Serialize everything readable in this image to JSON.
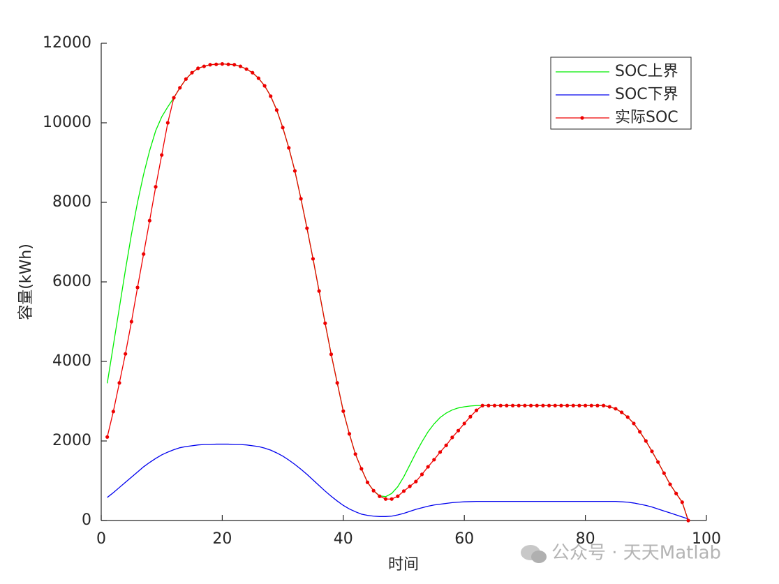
{
  "chart_data": {
    "type": "line",
    "xlabel": "时间",
    "ylabel": "容量(kWh)",
    "x": [
      1,
      2,
      3,
      4,
      5,
      6,
      7,
      8,
      9,
      10,
      11,
      12,
      13,
      14,
      15,
      16,
      17,
      18,
      19,
      20,
      21,
      22,
      23,
      24,
      25,
      26,
      27,
      28,
      29,
      30,
      31,
      32,
      33,
      34,
      35,
      36,
      37,
      38,
      39,
      40,
      41,
      42,
      43,
      44,
      45,
      46,
      47,
      48,
      49,
      50,
      51,
      52,
      53,
      54,
      55,
      56,
      57,
      58,
      59,
      60,
      61,
      62,
      63,
      64,
      65,
      66,
      67,
      68,
      69,
      70,
      71,
      72,
      73,
      74,
      75,
      76,
      77,
      78,
      79,
      80,
      81,
      82,
      83,
      84,
      85,
      86,
      87,
      88,
      89,
      90,
      91,
      92,
      93,
      94,
      95,
      96,
      97
    ],
    "series": [
      {
        "name": "SOC上界",
        "color": "#00ee00",
        "marker": false,
        "values": [
          3450,
          4400,
          5350,
          6300,
          7200,
          8000,
          8700,
          9300,
          9800,
          10150,
          10400,
          10630,
          10880,
          11100,
          11260,
          11370,
          11420,
          11460,
          11470,
          11480,
          11470,
          11460,
          11420,
          11350,
          11260,
          11120,
          10930,
          10670,
          10320,
          9880,
          9370,
          8790,
          8090,
          7350,
          6580,
          5770,
          4960,
          4180,
          3460,
          2750,
          2180,
          1670,
          1300,
          960,
          750,
          620,
          600,
          680,
          850,
          1100,
          1400,
          1700,
          1980,
          2230,
          2430,
          2590,
          2700,
          2780,
          2830,
          2860,
          2880,
          2890,
          2890,
          2890,
          2890,
          2890,
          2890,
          2890,
          2890,
          2890,
          2890,
          2890,
          2890,
          2890,
          2890,
          2890,
          2890,
          2890,
          2890,
          2890,
          2890,
          2890,
          2890,
          2860,
          2810,
          2720,
          2600,
          2440,
          2230,
          2000,
          1740,
          1470,
          1190,
          910,
          680,
          460,
          0
        ]
      },
      {
        "name": "SOC下界",
        "color": "#0000ee",
        "marker": false,
        "values": [
          580,
          700,
          830,
          960,
          1090,
          1220,
          1350,
          1460,
          1560,
          1650,
          1720,
          1780,
          1830,
          1860,
          1880,
          1900,
          1910,
          1910,
          1920,
          1920,
          1920,
          1910,
          1910,
          1900,
          1880,
          1860,
          1820,
          1770,
          1700,
          1620,
          1520,
          1410,
          1290,
          1160,
          1020,
          880,
          740,
          610,
          490,
          380,
          290,
          220,
          160,
          130,
          110,
          100,
          100,
          110,
          140,
          180,
          230,
          280,
          320,
          360,
          390,
          410,
          430,
          450,
          460,
          470,
          475,
          480,
          480,
          480,
          480,
          480,
          480,
          480,
          480,
          480,
          480,
          480,
          480,
          480,
          480,
          480,
          480,
          480,
          480,
          480,
          480,
          480,
          480,
          480,
          480,
          470,
          460,
          440,
          410,
          380,
          340,
          290,
          240,
          190,
          140,
          90,
          40
        ]
      },
      {
        "name": "实际SOC",
        "color": "#ee0000",
        "marker": true,
        "values": [
          2100,
          2740,
          3460,
          4190,
          5000,
          5860,
          6700,
          7540,
          8390,
          9190,
          10000,
          10630,
          10880,
          11100,
          11260,
          11370,
          11420,
          11460,
          11470,
          11480,
          11470,
          11460,
          11420,
          11350,
          11260,
          11120,
          10930,
          10670,
          10320,
          9880,
          9370,
          8790,
          8090,
          7350,
          6580,
          5770,
          4960,
          4180,
          3460,
          2750,
          2180,
          1670,
          1300,
          960,
          750,
          610,
          540,
          540,
          610,
          740,
          860,
          980,
          1160,
          1350,
          1530,
          1720,
          1890,
          2090,
          2260,
          2440,
          2610,
          2770,
          2890,
          2890,
          2890,
          2890,
          2890,
          2890,
          2890,
          2890,
          2890,
          2890,
          2890,
          2890,
          2890,
          2890,
          2890,
          2890,
          2890,
          2890,
          2890,
          2890,
          2890,
          2860,
          2810,
          2720,
          2600,
          2440,
          2230,
          2000,
          1740,
          1470,
          1190,
          910,
          680,
          460,
          0
        ]
      }
    ],
    "xlim": [
      0,
      100
    ],
    "xticks": [
      0,
      20,
      40,
      60,
      80,
      100
    ],
    "ylim": [
      0,
      12000
    ],
    "yticks": [
      0,
      2000,
      4000,
      6000,
      8000,
      10000,
      12000
    ],
    "grid": false,
    "legend": "upper right",
    "watermark": "公众号 · 天天Matlab"
  }
}
